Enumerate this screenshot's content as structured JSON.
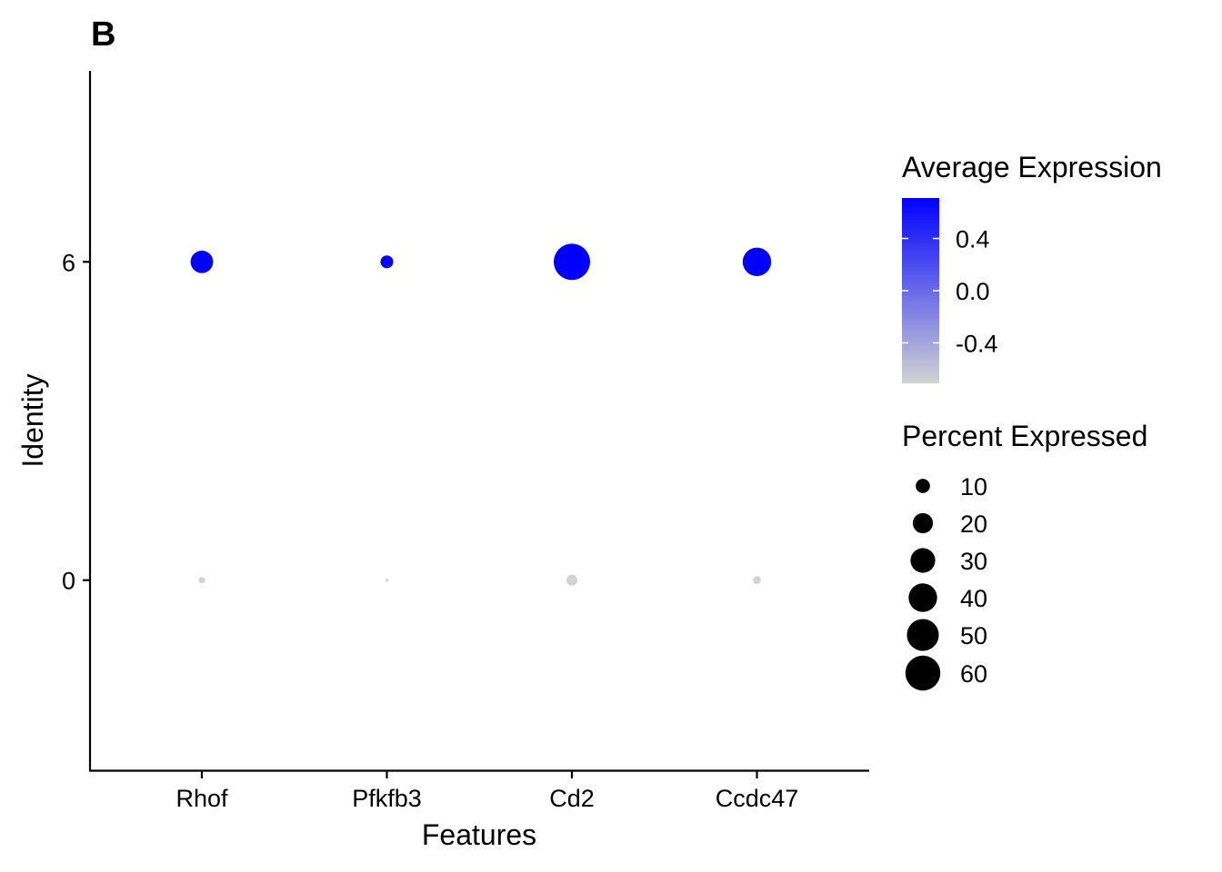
{
  "chart_data": {
    "type": "dot",
    "panel_tag": "B",
    "xlabel": "Features",
    "ylabel": "Identity",
    "categories": [
      "Rhof",
      "Pfkfb3",
      "Cd2",
      "Ccdc47"
    ],
    "identities": [
      {
        "label": "6",
        "value": 6
      },
      {
        "label": "0",
        "value": 0
      }
    ],
    "ylim": [
      -3.6,
      9.6
    ],
    "points": [
      {
        "feature": "Rhof",
        "identity": 6,
        "pct_expressed": 25,
        "avg_expression": 0.71
      },
      {
        "feature": "Pfkfb3",
        "identity": 6,
        "pct_expressed": 8,
        "avg_expression": 0.71
      },
      {
        "feature": "Cd2",
        "identity": 6,
        "pct_expressed": 65,
        "avg_expression": 0.71
      },
      {
        "feature": "Ccdc47",
        "identity": 6,
        "pct_expressed": 40,
        "avg_expression": 0.71
      },
      {
        "feature": "Rhof",
        "identity": 0,
        "pct_expressed": 2,
        "avg_expression": -0.71
      },
      {
        "feature": "Pfkfb3",
        "identity": 0,
        "pct_expressed": 0.5,
        "avg_expression": -0.71
      },
      {
        "feature": "Cd2",
        "identity": 0,
        "pct_expressed": 6,
        "avg_expression": -0.71
      },
      {
        "feature": "Ccdc47",
        "identity": 0,
        "pct_expressed": 3,
        "avg_expression": -0.71
      }
    ],
    "color_legend": {
      "title": "Average Expression",
      "low_color": "#d3d3d3",
      "high_color": "#0000ff",
      "range": [
        -0.71,
        0.71
      ],
      "ticks": [
        {
          "label": "0.4",
          "value": 0.4
        },
        {
          "label": "0.0",
          "value": 0.0
        },
        {
          "label": "-0.4",
          "value": -0.4
        }
      ]
    },
    "size_legend": {
      "title": "Percent Expressed",
      "max_value": 65,
      "entries": [
        {
          "label": "10",
          "value": 10
        },
        {
          "label": "20",
          "value": 20
        },
        {
          "label": "30",
          "value": 30
        },
        {
          "label": "40",
          "value": 40
        },
        {
          "label": "50",
          "value": 50
        },
        {
          "label": "60",
          "value": 60
        }
      ]
    },
    "grid": false,
    "legend_position": "right"
  }
}
